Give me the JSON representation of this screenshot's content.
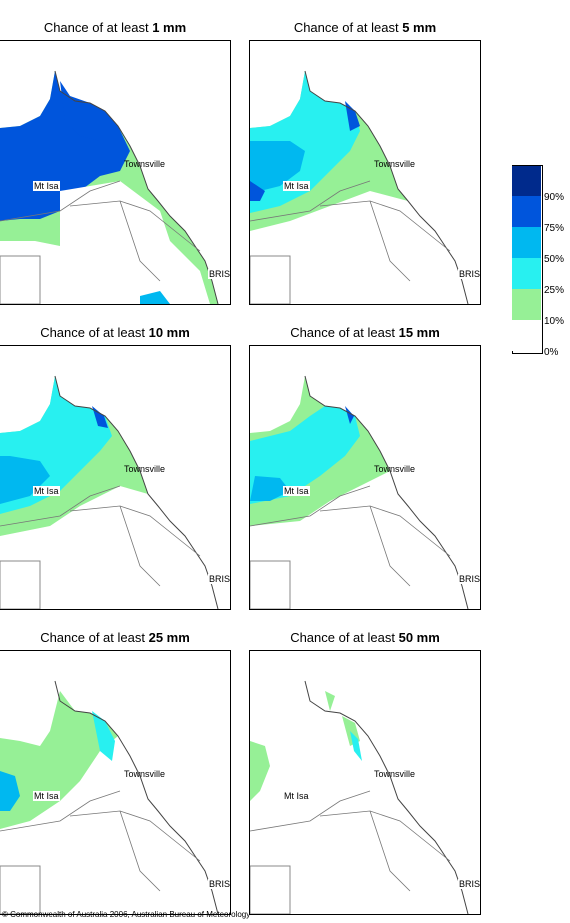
{
  "legend": {
    "colors": [
      "#002a8c",
      "#0055dc",
      "#00b8f0",
      "#28f0f0",
      "#96f096",
      "#ffffff"
    ],
    "labels": [
      "90%",
      "75%",
      "50%",
      "25%",
      "10%",
      "0%"
    ]
  },
  "places": {
    "townsville": "Townsville",
    "mt_isa": "Mt Isa",
    "bris": "BRIS"
  },
  "panels": [
    {
      "prefix": "Chance of at least ",
      "amount": "1 mm"
    },
    {
      "prefix": "Chance of at least ",
      "amount": "5 mm"
    },
    {
      "prefix": "Chance of at least ",
      "amount": "10 mm"
    },
    {
      "prefix": "Chance of at least ",
      "amount": "15 mm"
    },
    {
      "prefix": "Chance of at least ",
      "amount": "25 mm"
    },
    {
      "prefix": "Chance of at least ",
      "amount": "50 mm"
    }
  ],
  "footer": {
    "copyright": "© Commonwealth of Australia 2006, Australian Bureau of Meteorology"
  }
}
